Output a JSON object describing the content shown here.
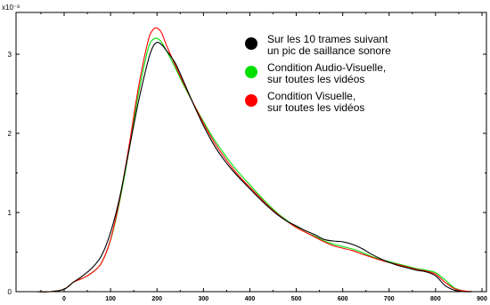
{
  "chart_data": {
    "type": "line",
    "title": "",
    "xlabel": "",
    "ylabel": "",
    "y_multiplier_label": "x10⁻³",
    "xlim": [
      -70,
      900
    ],
    "ylim": [
      0,
      3.5
    ],
    "x_ticks": [
      0,
      100,
      200,
      300,
      400,
      500,
      600,
      700,
      800,
      900
    ],
    "y_ticks": [
      0,
      1,
      2,
      3
    ],
    "grid": false,
    "legend_position": "top-right",
    "series": [
      {
        "name": "Sur les 10 trames suivant un pic de saillance sonore",
        "legend_lines": [
          "Sur les 10 trames suivant",
          "un pic de saillance sonore"
        ],
        "color": "#000000",
        "x": [
          -60,
          -30,
          0,
          20,
          40,
          60,
          80,
          100,
          120,
          140,
          160,
          180,
          190,
          200,
          210,
          220,
          240,
          260,
          280,
          300,
          320,
          340,
          360,
          380,
          400,
          420,
          440,
          460,
          480,
          500,
          520,
          540,
          560,
          580,
          600,
          620,
          640,
          660,
          680,
          700,
          720,
          740,
          760,
          780,
          800,
          820,
          840,
          860,
          880
        ],
        "y": [
          0.0,
          0.0,
          0.03,
          0.12,
          0.2,
          0.3,
          0.45,
          0.75,
          1.2,
          1.8,
          2.4,
          2.9,
          3.08,
          3.15,
          3.12,
          3.05,
          2.88,
          2.62,
          2.35,
          2.1,
          1.88,
          1.7,
          1.55,
          1.42,
          1.3,
          1.18,
          1.07,
          0.97,
          0.89,
          0.83,
          0.77,
          0.72,
          0.66,
          0.64,
          0.63,
          0.6,
          0.55,
          0.48,
          0.42,
          0.37,
          0.33,
          0.3,
          0.27,
          0.25,
          0.2,
          0.08,
          0.02,
          0.0,
          0.0
        ]
      },
      {
        "name": "Condition Audio-Visuelle, sur toutes les vidéos",
        "legend_lines": [
          "Condition Audio-Visuelle,",
          "sur toutes les vidéos"
        ],
        "color": "#00e000",
        "x": [
          -60,
          -30,
          0,
          20,
          40,
          60,
          80,
          100,
          120,
          140,
          160,
          180,
          190,
          200,
          210,
          220,
          240,
          260,
          280,
          300,
          320,
          340,
          360,
          380,
          400,
          420,
          440,
          460,
          480,
          500,
          520,
          540,
          560,
          580,
          600,
          620,
          640,
          660,
          680,
          700,
          720,
          740,
          760,
          780,
          800,
          820,
          840,
          860,
          880
        ],
        "y": [
          0.0,
          0.0,
          0.03,
          0.12,
          0.17,
          0.24,
          0.36,
          0.65,
          1.15,
          1.8,
          2.5,
          3.05,
          3.18,
          3.2,
          3.15,
          3.05,
          2.82,
          2.58,
          2.36,
          2.15,
          1.95,
          1.78,
          1.62,
          1.48,
          1.35,
          1.22,
          1.1,
          0.99,
          0.9,
          0.82,
          0.75,
          0.7,
          0.64,
          0.6,
          0.57,
          0.54,
          0.5,
          0.45,
          0.41,
          0.38,
          0.35,
          0.32,
          0.29,
          0.27,
          0.24,
          0.15,
          0.05,
          0.01,
          0.0
        ]
      },
      {
        "name": "Condition Visuelle, sur toutes les vidéos",
        "legend_lines": [
          "Condition Visuelle,",
          "sur toutes les vidéos"
        ],
        "color": "#ff0000",
        "x": [
          -60,
          -30,
          0,
          20,
          40,
          60,
          80,
          100,
          120,
          140,
          160,
          180,
          190,
          200,
          210,
          220,
          240,
          260,
          280,
          300,
          320,
          340,
          360,
          380,
          400,
          420,
          440,
          460,
          480,
          500,
          520,
          540,
          560,
          580,
          600,
          620,
          640,
          660,
          680,
          700,
          720,
          740,
          760,
          780,
          800,
          820,
          840,
          860,
          880
        ],
        "y": [
          0.0,
          0.0,
          0.03,
          0.12,
          0.17,
          0.24,
          0.36,
          0.66,
          1.18,
          1.85,
          2.58,
          3.15,
          3.3,
          3.33,
          3.27,
          3.12,
          2.85,
          2.6,
          2.36,
          2.13,
          1.92,
          1.74,
          1.58,
          1.44,
          1.32,
          1.2,
          1.08,
          0.98,
          0.89,
          0.81,
          0.75,
          0.69,
          0.63,
          0.58,
          0.55,
          0.52,
          0.48,
          0.44,
          0.4,
          0.37,
          0.34,
          0.31,
          0.28,
          0.26,
          0.22,
          0.12,
          0.04,
          0.01,
          0.0
        ]
      }
    ]
  }
}
